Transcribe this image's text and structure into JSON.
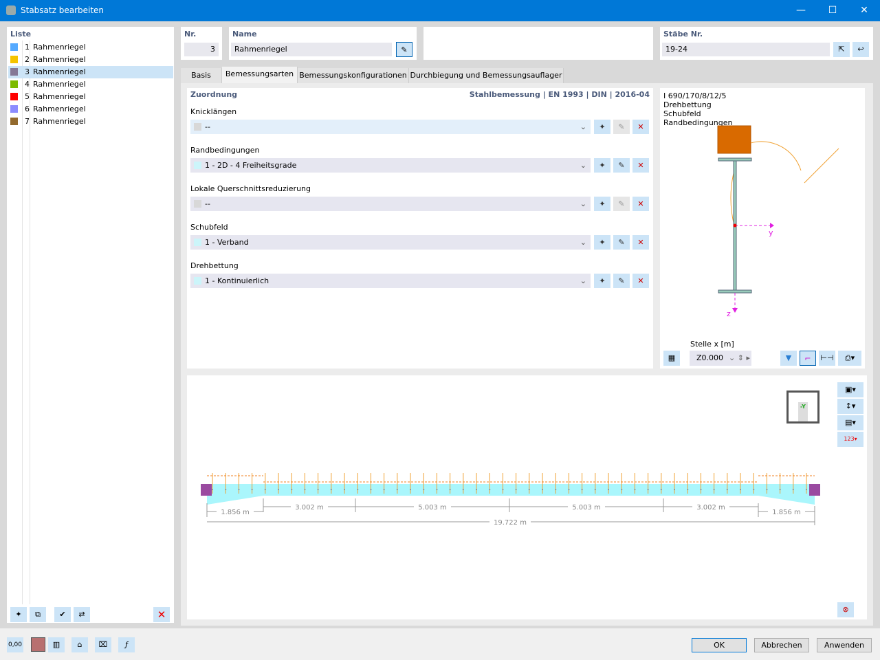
{
  "window": {
    "title": "Stabsatz bearbeiten",
    "minimize": "—",
    "maximize": "☐",
    "close": "✕"
  },
  "list": {
    "header": "Liste",
    "items": [
      {
        "num": "1",
        "name": "Rahmenriegel",
        "color": "#55aaff"
      },
      {
        "num": "2",
        "name": "Rahmenriegel",
        "color": "#f5c400"
      },
      {
        "num": "3",
        "name": "Rahmenriegel",
        "color": "#857896",
        "selected": true
      },
      {
        "num": "4",
        "name": "Rahmenriegel",
        "color": "#7dbb00"
      },
      {
        "num": "5",
        "name": "Rahmenriegel",
        "color": "#ff0000"
      },
      {
        "num": "6",
        "name": "Rahmenriegel",
        "color": "#8c8cff"
      },
      {
        "num": "7",
        "name": "Rahmenriegel",
        "color": "#936a2e"
      }
    ]
  },
  "header": {
    "nr_label": "Nr.",
    "nr_value": "3",
    "name_label": "Name",
    "name_value": "Rahmenriegel",
    "staebe_label": "Stäbe Nr.",
    "staebe_value": "19-24"
  },
  "tabs": [
    "Basis",
    "Bemessungsarten",
    "Bemessungskonfigurationen",
    "Durchbiegung und Bemessungsauflager"
  ],
  "active_tab": "Bemessungsarten",
  "zuordnung": {
    "title": "Zuordnung",
    "standard": "Stahlbemessung | EN 1993 | DIN | 2016-04",
    "groups": [
      {
        "label": "Knicklängen",
        "value": "--",
        "swatch": "#d8d8d8",
        "bg": "#e3effa"
      },
      {
        "label": "Randbedingungen",
        "value": "1 - 2D - 4 Freiheitsgrade",
        "swatch": "#ccf5fa",
        "bg": "#e6e6f0"
      },
      {
        "label": "Lokale Querschnittsreduzierung",
        "value": "--",
        "swatch": "#d8d8d8",
        "bg": "#e6e6f0"
      },
      {
        "label": "Schubfeld",
        "value": "1 - Verband",
        "swatch": "#ccf5fa",
        "bg": "#e6e6f0"
      },
      {
        "label": "Drehbettung",
        "value": "1 - Kontinuierlich",
        "swatch": "#ccf5fa",
        "bg": "#e6e6f0"
      }
    ]
  },
  "section": {
    "lines": [
      "I 690/170/8/12/5",
      "Drehbettung",
      "Schubfeld",
      "Randbedingungen"
    ],
    "axis_y": "y",
    "axis_z": "z",
    "stelle_label": "Stelle x [m]",
    "stelle_value": "Z0.000"
  },
  "beam": {
    "segments": [
      "1.856 m",
      "3.002 m",
      "5.003 m",
      "5.003 m",
      "3.002 m",
      "1.856 m"
    ],
    "total": "19.722 m",
    "view_label": "-Y"
  },
  "footer": {
    "ok": "OK",
    "cancel": "Abbrechen",
    "apply": "Anwenden",
    "units": "0,00"
  }
}
